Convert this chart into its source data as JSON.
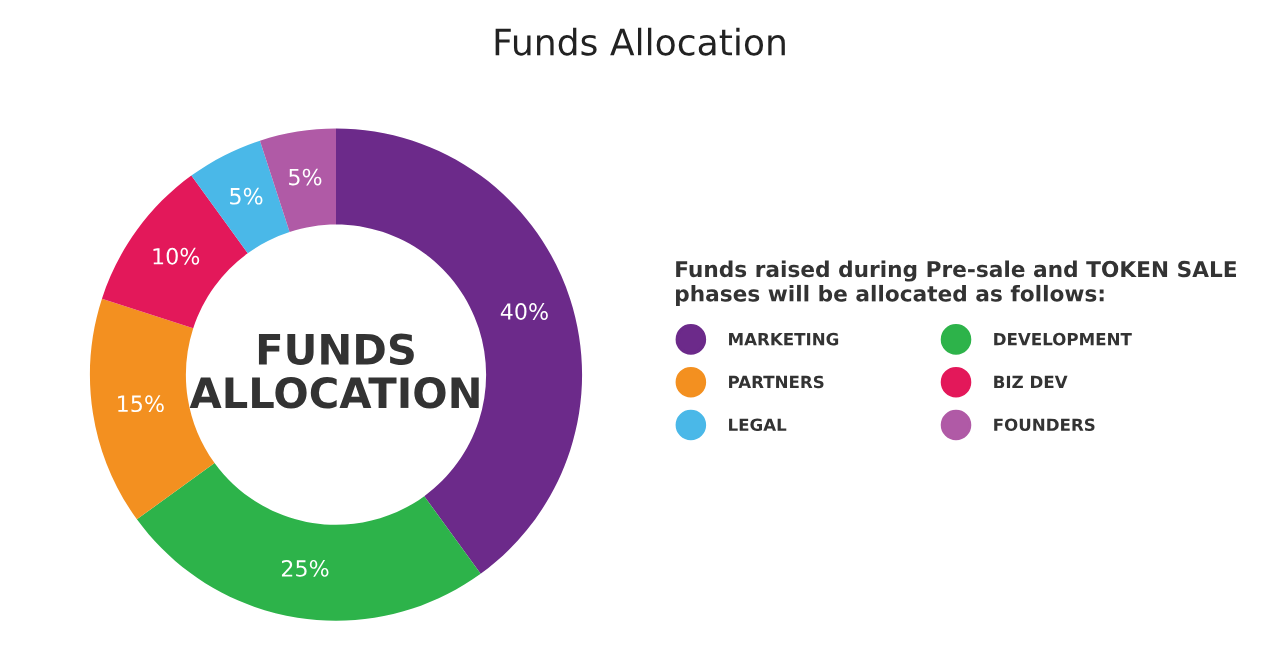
{
  "chart_data": {
    "type": "donut",
    "title": "Funds Allocation",
    "legend_title": "Funds raised during Pre-sale and TOKEN SALE\nphases will be allocated as follows:",
    "annotations": [
      "FUNDS\nALLOCATION"
    ],
    "categories": [
      "MARKETING",
      "DEVELOPMENT",
      "PARTNERS",
      "BIZ DEV",
      "LEGAL",
      "FOUNDERS"
    ],
    "values": [
      40,
      25,
      15,
      10,
      5,
      5
    ],
    "value_labels": [
      "40%",
      "25%",
      "15%",
      "10%",
      "5%",
      "5%"
    ],
    "colors": [
      "#6c2a8a",
      "#2db34a",
      "#f39020",
      "#e3185a",
      "#4ab8e8",
      "#b05aa6"
    ],
    "legend": "right"
  }
}
